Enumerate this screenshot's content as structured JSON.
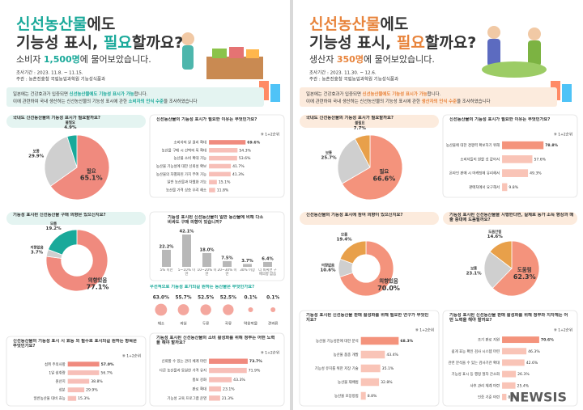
{
  "panels": [
    {
      "accent": "#1aa99a",
      "light": "#e4f4f1",
      "title_1": [
        "신선농산물",
        "에도"
      ],
      "title_2": [
        "기능성 표시, ",
        "필요",
        "할까요?"
      ],
      "subtitle": [
        "소비자 ",
        "1,500명",
        "에 물어보았습니다."
      ],
      "period": "조사기간 : 2023. 11.8. ~ 11.15.",
      "org": "주관 : 농촌진흥청 국립농업과학원 기능성식품과",
      "intro_1": [
        "일본에는 건강효과가 입증되면 ",
        "신선농산물에도 기능성 표시가 가능",
        "합니다."
      ],
      "intro_2": [
        "이에 관련하여 국내 생산하는 신선농산물의 기능성 표시에 관한 ",
        "소비자의 인식 수준",
        "을 조사하였습니다"
      ]
    },
    {
      "accent": "#e8843c",
      "light": "#fcebdd",
      "title_1": [
        "신선농산물",
        "에도"
      ],
      "title_2": [
        "기능성 표시, ",
        "필요",
        "할까요?"
      ],
      "subtitle": [
        "생산자 ",
        "350명",
        "에 물어보았습니다."
      ],
      "period": "조사기간 : 2023. 11.30. ~ 12.6.",
      "org": "주관 : 농촌진흥청 국립농업과학원 기능성식품과",
      "intro_1": [
        "일본에는 건강효과가 입증되면 ",
        "신선농산물에도 기능성 표시가 가능",
        "합니다."
      ],
      "intro_2": [
        "이에 관련하여 국내 생산하는 신선농산물의 기능성 표시에 관한 ",
        "생산자의 인식 수준",
        "을 조사하였습니다"
      ]
    }
  ],
  "watermark": "NEWSIS",
  "chart_data": [
    {
      "type": "pie",
      "title": "국내도 신선농산물의 기능성 표시가 필요할까요?",
      "categories": [
        "필요",
        "보통",
        "불필요"
      ],
      "values": [
        65.1,
        29.9,
        4.9
      ],
      "value_labels": [
        "65.1%",
        "29.9%",
        "4.9%"
      ],
      "colors": [
        "#f08a7e",
        "#cfcfcf",
        "#1aa99a"
      ]
    },
    {
      "type": "hbar",
      "title": "신선농산물의 기능성 표시가 필요한 이유는 무엇인가요?",
      "note": "※ 1+2순위",
      "categories": [
        "소비자의 알 권리 확대",
        "농산물 구매 시 선택의 폭 확대",
        "농산물 소비 확대 가능",
        "농산물 기능성에 대한 신뢰성 확보",
        "농산물의 차별화된 가치 부여 가능",
        "일반 농산물과 차별화 가능",
        "농산물 가격 상승 우려 해소"
      ],
      "values": [
        69.6,
        54.3,
        53.6,
        41.7,
        41.3,
        15.1,
        11.8
      ],
      "value_labels": [
        "69.6%",
        "54.3%",
        "53.6%",
        "41.7%",
        "41.3%",
        "15.1%",
        "11.8%"
      ],
      "color": "#f08a7e"
    },
    {
      "type": "pie",
      "hole": true,
      "title": "기능성 표시된 신선농산물 구매 의향은 있으신지요?",
      "categories": [
        "의향있음",
        "의향없음",
        "모름"
      ],
      "values": [
        77.1,
        3.7,
        19.2
      ],
      "value_labels": [
        "77.1%",
        "3.7%",
        "19.2%"
      ],
      "colors": [
        "#f08a7e",
        "#cfcfcf",
        "#1aa99a"
      ]
    },
    {
      "type": "vbar",
      "title": "기능성 표시된 신선농산물이 일반 농산물에 비해 다소 비싸도 구매 의향이 있습니까?",
      "categories": [
        "5% 미만",
        "5~10% 미만",
        "10~20% 미만",
        "20~30% 미만",
        "30% 이상",
        "더 비싸면 구매의향 없음"
      ],
      "values": [
        22.2,
        42.1,
        18.0,
        7.5,
        3.7,
        6.4
      ],
      "value_labels": [
        "22.2%",
        "42.1%",
        "18.0%",
        "7.5%",
        "3.7%",
        "6.4%"
      ],
      "color": "#b8b8b8"
    },
    {
      "type": "icons",
      "title": "우선적으로 기능성 표기되길 원하는 농산물은 무엇인가요?",
      "categories": [
        "채소",
        "과일",
        "두류",
        "곡류",
        "약용작물",
        "견과류"
      ],
      "values": [
        63.0,
        55.7,
        52.5,
        52.5,
        0.1,
        0.1
      ],
      "value_labels": [
        "63.0%",
        "55.7%",
        "52.5%",
        "52.5%",
        "0.1%",
        "0.1%"
      ],
      "color": "#f08a7e"
    },
    {
      "type": "hbar",
      "title": "신선농산물의 기능성 표시 시 효능 외 필수로 표시되길 원하는 항목은 무엇인가요?",
      "note": "※ 1+2순위",
      "categories": [
        "섭취 주의사항",
        "1일 섭취량",
        "원산지",
        "성분",
        "일반농산물 대비 효능"
      ],
      "values": [
        57.0,
        56.7,
        38.8,
        29.9,
        15.3
      ],
      "value_labels": [
        "57.0%",
        "56.7%",
        "38.8%",
        "29.9%",
        "15.3%"
      ],
      "color": "#f08a7e"
    },
    {
      "type": "hbar",
      "title": "기능성 표시된 신선농산물의 소비 활성화를 위해 정부는 어떤 노력을 해야 할까요?",
      "note": "※ 1+2순위",
      "categories": [
        "신뢰할 수 있는 관리 체계 마련",
        "다른 농산물과 동일한 가격 유지",
        "홍보 강화",
        "판로 확대",
        "기능성 교육 프로그램 운영"
      ],
      "values": [
        73.7,
        71.9,
        43.3,
        23.1,
        21.3
      ],
      "value_labels": [
        "73.7%",
        "71.9%",
        "43.3%",
        "23.1%",
        "21.3%"
      ],
      "color": "#f08a7e"
    },
    {
      "type": "pie",
      "title": "국내도 신선농산물의 기능성 표시가 필요할까요?",
      "categories": [
        "필요",
        "보통",
        "불필요"
      ],
      "values": [
        66.6,
        25.7,
        7.7
      ],
      "value_labels": [
        "66.6%",
        "25.7%",
        "7.7%"
      ],
      "colors": [
        "#f4937c",
        "#cfcfcf",
        "#e8a04a"
      ]
    },
    {
      "type": "hbar",
      "title": "신선농산물의 기능성 표시가 필요한 이유는 무엇인가요?",
      "note": "※ 1+2순위",
      "categories": [
        "농산물에 대한 경쟁력 확보하기 위해",
        "소비자들이 원할 것 같아서",
        "온라인 판매 시 마케팅에 유리해서",
        "판매처에서 요구해서"
      ],
      "values": [
        78.8,
        57.6,
        49.3,
        9.8
      ],
      "value_labels": [
        "78.8%",
        "57.6%",
        "49.3%",
        "9.8%"
      ],
      "color": "#f4937c"
    },
    {
      "type": "pie",
      "hole": true,
      "title": "신선농산물의 기능성 표시에 참여 의향이 있으신지요?",
      "categories": [
        "의향있음",
        "의향없음",
        "모름"
      ],
      "values": [
        70.0,
        10.6,
        19.4
      ],
      "value_labels": [
        "70.0%",
        "10.6%",
        "19.4%"
      ],
      "colors": [
        "#f4937c",
        "#cfcfcf",
        "#e8a04a"
      ]
    },
    {
      "type": "pie",
      "title": "기능성 표시된 신선농산물을 시행한다면, 실제로 농가 소득 향상과 매출 증대에 도움될까요?",
      "categories": [
        "도움됨",
        "보통",
        "도움안됨"
      ],
      "values": [
        62.3,
        23.1,
        14.6
      ],
      "value_labels": [
        "62.3%",
        "23.1%",
        "14.6%"
      ],
      "colors": [
        "#f4937c",
        "#cfcfcf",
        "#e8a04a"
      ]
    },
    {
      "type": "hbar",
      "title": "기능성 표시된 신선농산물 판매 활성화를 위해 필요한 연구가 무엇인지요?",
      "note": "※ 1+2순위",
      "categories": [
        "농산물 기능성분에 대한 분석",
        "농산물 품종 개발",
        "기능성 유지를 위한 저장 기술",
        "농산물 재배법",
        "농산물 포장방법"
      ],
      "values": [
        68.3,
        43.4,
        35.1,
        32.8,
        8.8
      ],
      "value_labels": [
        "68.3%",
        "43.4%",
        "35.1%",
        "32.8%",
        "8.8%"
      ],
      "color": "#f4937c"
    },
    {
      "type": "hbar",
      "title": "기능성 표시된 신선농산물 판매 활성화를 위해 정부와 지자체는 어떤 노력을 해야 할까요?",
      "note": "※ 1+2순위",
      "categories": [
        "조기 판로 지원",
        "쉽게 효능 확인 검사 시스템 마련",
        "관련 분석을 수 있는 검사기관 확대",
        "기능성 표시 등 행정 절차 간소화",
        "사후 관리 체계 마련",
        "인증 기준 마련"
      ],
      "values": [
        70.6,
        46.3,
        42.6,
        26.3,
        25.4,
        8.3
      ],
      "value_labels": [
        "70.6%",
        "46.3%",
        "42.6%",
        "26.3%",
        "25.4%",
        "8.3%"
      ],
      "color": "#f4937c"
    }
  ]
}
